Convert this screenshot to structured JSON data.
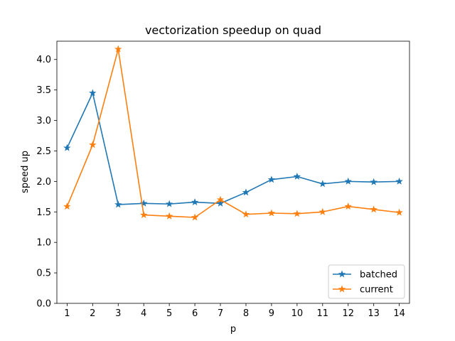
{
  "chart_data": {
    "type": "line",
    "title": "vectorization speedup on quad",
    "xlabel": "p",
    "ylabel": "speed up",
    "x": [
      1,
      2,
      3,
      4,
      5,
      6,
      7,
      8,
      9,
      10,
      11,
      12,
      13,
      14
    ],
    "xlim": [
      0.6,
      14.4
    ],
    "ylim": [
      0,
      4.3
    ],
    "yticks": [
      0.0,
      0.5,
      1.0,
      1.5,
      2.0,
      2.5,
      3.0,
      3.5,
      4.0
    ],
    "ytick_labels": [
      "0.0",
      "0.5",
      "1.0",
      "1.5",
      "2.0",
      "2.5",
      "3.0",
      "3.5",
      "4.0"
    ],
    "xtick_labels": [
      "1",
      "2",
      "3",
      "4",
      "5",
      "6",
      "7",
      "8",
      "9",
      "10",
      "11",
      "12",
      "13",
      "14"
    ],
    "grid": false,
    "legend_position": "lower-right",
    "marker": "star",
    "series": [
      {
        "name": "batched",
        "color": "#1f77b4",
        "values": [
          2.55,
          3.45,
          1.62,
          1.64,
          1.63,
          1.66,
          1.64,
          1.82,
          2.03,
          2.08,
          1.96,
          2.0,
          1.99,
          2.0
        ]
      },
      {
        "name": "current",
        "color": "#ff7f0e",
        "values": [
          1.59,
          2.6,
          4.17,
          1.45,
          1.43,
          1.41,
          1.7,
          1.46,
          1.48,
          1.47,
          1.5,
          1.59,
          1.54,
          1.49
        ]
      }
    ]
  }
}
